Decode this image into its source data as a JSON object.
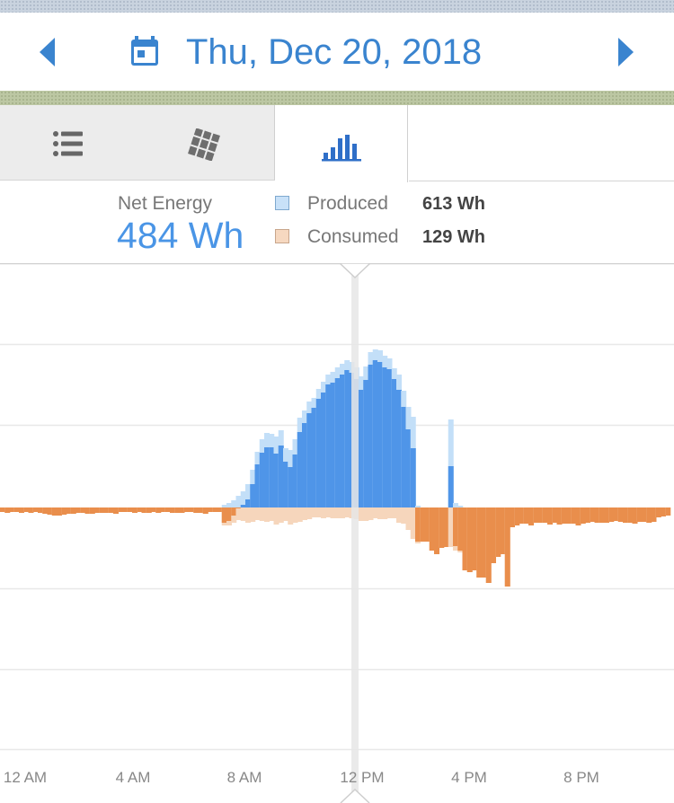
{
  "header": {
    "date_label": "Thu, Dec 20, 2018",
    "prev_icon": "chevron-left-icon",
    "next_icon": "chevron-right-icon",
    "calendar_icon": "calendar-icon",
    "accent_color": "#3a84cf"
  },
  "tabs": [
    {
      "id": "list",
      "icon": "list-icon",
      "active": false
    },
    {
      "id": "panels",
      "icon": "solar-panel-icon",
      "active": false
    },
    {
      "id": "chart",
      "icon": "bar-chart-icon",
      "active": true
    }
  ],
  "summary": {
    "net_label": "Net Energy",
    "net_value": "484 Wh",
    "produced_label": "Produced",
    "produced_value": "613 Wh",
    "consumed_label": "Consumed",
    "consumed_value": "129 Wh",
    "produced_color": "#c8e1f8",
    "consumed_color": "#f6d8c0",
    "net_color": "#4a95e6"
  },
  "chart_data": {
    "type": "bar",
    "interval_minutes": 10,
    "x_tick_labels": [
      "12 AM",
      "4 AM",
      "8 AM",
      "12 PM",
      "4 PM",
      "8 PM"
    ],
    "selected_time": "12 PM",
    "colors": {
      "produced_light": "#c3dff8",
      "net_produced": "#4f95e8",
      "consumed_light": "#f6d6bc",
      "net_consumed": "#e98e4c"
    },
    "produced": [
      0,
      0,
      0,
      0,
      0,
      0,
      0,
      0,
      0,
      0,
      0,
      0,
      0,
      0,
      0,
      0,
      0,
      0,
      0,
      0,
      0,
      0,
      0,
      0,
      0,
      0,
      0,
      0,
      0,
      0,
      0,
      0,
      0,
      0,
      0,
      0,
      0,
      0,
      0,
      0,
      0,
      0,
      0,
      0,
      0,
      0,
      0,
      3,
      5,
      8,
      13,
      18,
      26,
      42,
      62,
      76,
      83,
      82,
      79,
      86,
      66,
      64,
      76,
      100,
      108,
      118,
      122,
      132,
      140,
      148,
      151,
      156,
      160,
      164,
      162,
      156,
      146,
      157,
      173,
      176,
      175,
      169,
      166,
      155,
      148,
      130,
      112,
      101,
      2,
      0,
      0,
      0,
      0,
      0,
      0,
      98,
      5,
      2,
      0,
      0,
      0,
      0,
      0,
      0,
      0,
      0,
      0,
      0,
      0,
      0,
      0,
      0,
      0,
      0,
      0,
      0,
      0,
      0,
      0,
      0,
      0,
      0,
      0,
      0,
      0,
      0,
      0,
      0,
      0,
      0,
      0,
      0,
      0,
      0,
      0,
      0,
      0,
      0,
      0,
      0,
      0,
      0
    ],
    "consumed": [
      5,
      6,
      5,
      5,
      6,
      5,
      6,
      5,
      6,
      7,
      8,
      9,
      9,
      8,
      7,
      7,
      6,
      6,
      7,
      7,
      6,
      6,
      6,
      6,
      7,
      5,
      5,
      5,
      6,
      5,
      6,
      6,
      5,
      6,
      5,
      5,
      6,
      6,
      6,
      5,
      5,
      6,
      6,
      7,
      5,
      5,
      5,
      20,
      20,
      17,
      14,
      15,
      17,
      16,
      14,
      15,
      16,
      15,
      19,
      17,
      15,
      19,
      17,
      16,
      14,
      13,
      11,
      11,
      12,
      11,
      12,
      12,
      12,
      11,
      12,
      13,
      15,
      15,
      14,
      12,
      13,
      13,
      12,
      12,
      17,
      18,
      25,
      35,
      40,
      38,
      38,
      48,
      52,
      45,
      44,
      44,
      48,
      50,
      70,
      72,
      70,
      78,
      78,
      84,
      62,
      55,
      52,
      88,
      22,
      20,
      18,
      18,
      20,
      17,
      17,
      17,
      19,
      17,
      19,
      18,
      18,
      18,
      20,
      18,
      17,
      16,
      17,
      17,
      17,
      16,
      15,
      16,
      17,
      17,
      18,
      16,
      16,
      17,
      16,
      11,
      10,
      9
    ],
    "net": [
      -5,
      -6,
      -5,
      -5,
      -6,
      -5,
      -6,
      -5,
      -6,
      -7,
      -8,
      -9,
      -9,
      -8,
      -7,
      -7,
      -6,
      -6,
      -7,
      -7,
      -6,
      -6,
      -6,
      -6,
      -7,
      -5,
      -5,
      -5,
      -6,
      -5,
      -6,
      -6,
      -5,
      -6,
      -5,
      -5,
      -6,
      -6,
      -6,
      -5,
      -5,
      -6,
      -6,
      -7,
      -5,
      -5,
      -5,
      -17,
      -15,
      -9,
      -1,
      3,
      9,
      26,
      48,
      61,
      67,
      67,
      60,
      69,
      51,
      45,
      59,
      84,
      94,
      105,
      111,
      121,
      128,
      137,
      139,
      144,
      148,
      153,
      150,
      143,
      131,
      142,
      159,
      164,
      162,
      156,
      154,
      143,
      131,
      112,
      87,
      66,
      -38,
      -38,
      -38,
      -48,
      -52,
      -45,
      -44,
      46,
      -43,
      -48,
      -70,
      -72,
      -70,
      -78,
      -78,
      -84,
      -62,
      -55,
      -52,
      -88,
      -22,
      -20,
      -18,
      -18,
      -20,
      -17,
      -17,
      -17,
      -19,
      -17,
      -19,
      -18,
      -18,
      -18,
      -20,
      -18,
      -17,
      -16,
      -17,
      -17,
      -17,
      -16,
      -15,
      -16,
      -17,
      -17,
      -18,
      -16,
      -16,
      -17,
      -16,
      -11,
      -10,
      -9
    ]
  }
}
